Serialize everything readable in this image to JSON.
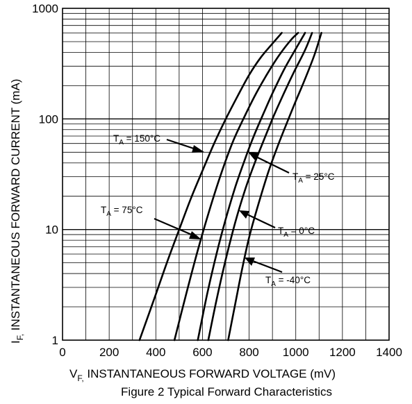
{
  "chart_data": {
    "type": "line",
    "title": "",
    "caption": "Figure 2 Typical Forward Characteristics",
    "xlabel": {
      "main": "V",
      "sub": "F,",
      "rest": " INSTANTANEOUS FORWARD VOLTAGE (mV)"
    },
    "ylabel": {
      "main": "I",
      "sub": "F,",
      "rest": " INSTANTANEOUS FORWARD CURRENT (mA)"
    },
    "xlim": [
      0,
      1400
    ],
    "ylim": [
      1,
      1000
    ],
    "y_scale": "log",
    "x_ticks": [
      "0",
      "200",
      "400",
      "600",
      "800",
      "1000",
      "1200",
      "1400"
    ],
    "y_ticks": [
      "1",
      "10",
      "100",
      "1000"
    ],
    "grid": true,
    "series": [
      {
        "name": "150°C",
        "label": {
          "t": "T",
          "sub": "A",
          "rest": " = 150°C"
        },
        "x": [
          330,
          400,
          450,
          500,
          550,
          600,
          650,
          700,
          750,
          800,
          850,
          900,
          940
        ],
        "y": [
          1,
          2.6,
          5.2,
          10,
          19,
          34,
          60,
          100,
          160,
          250,
          360,
          480,
          600
        ]
      },
      {
        "name": "75°C",
        "label": {
          "t": "T",
          "sub": "A",
          "rest": " = 75°C"
        },
        "x": [
          480,
          530,
          580,
          630,
          680,
          730,
          780,
          830,
          880,
          930,
          980,
          1010
        ],
        "y": [
          1,
          2.6,
          6.5,
          15,
          32,
          62,
          105,
          170,
          260,
          380,
          520,
          600
        ]
      },
      {
        "name": "25°C",
        "label": {
          "t": "T",
          "sub": "A",
          "rest": " = 25°C"
        },
        "x": [
          580,
          620,
          660,
          700,
          740,
          780,
          820,
          860,
          900,
          950,
          1000,
          1040
        ],
        "y": [
          1,
          2.6,
          6,
          12.5,
          24,
          42,
          70,
          110,
          170,
          280,
          430,
          600
        ]
      },
      {
        "name": "0°C",
        "label": {
          "t": "T",
          "sub": "A",
          "rest": " = 0°C"
        },
        "x": [
          625,
          660,
          700,
          740,
          780,
          820,
          860,
          900,
          940,
          990,
          1040,
          1070
        ],
        "y": [
          1,
          2.3,
          5.4,
          11.5,
          22,
          38,
          62,
          100,
          155,
          260,
          420,
          600
        ]
      },
      {
        "name": "-40°C",
        "label": {
          "t": "T",
          "sub": "A",
          "rest": " = -40°C"
        },
        "x": [
          710,
          740,
          770,
          800,
          840,
          880,
          920,
          960,
          1000,
          1040,
          1080,
          1110
        ],
        "y": [
          1,
          2.1,
          4.4,
          8.5,
          17,
          32,
          55,
          90,
          145,
          230,
          380,
          600
        ]
      }
    ]
  }
}
